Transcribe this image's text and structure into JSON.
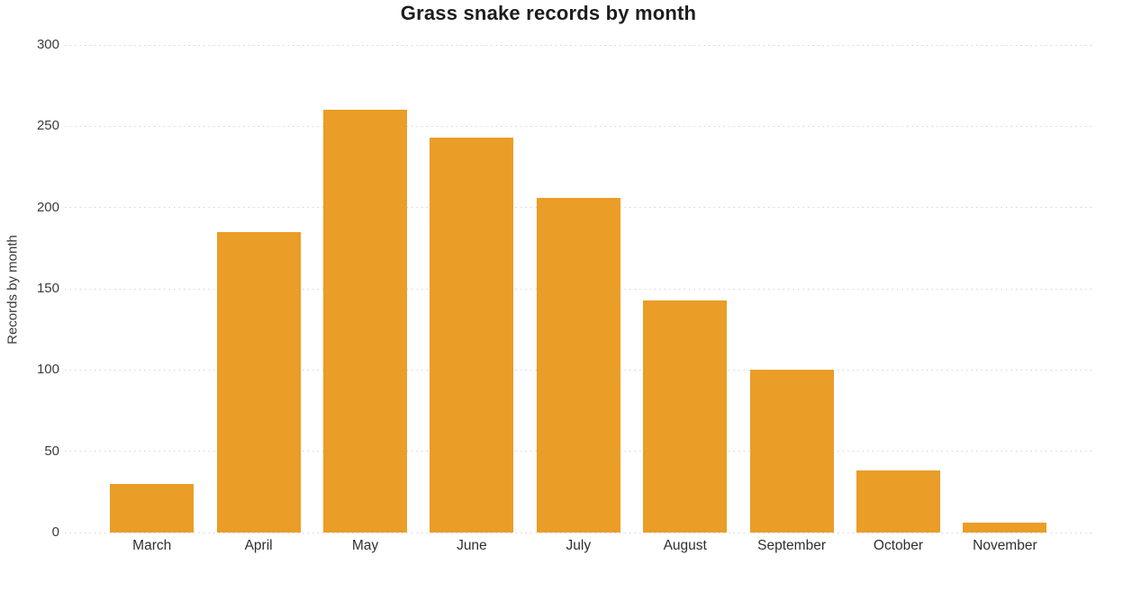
{
  "chart_data": {
    "type": "bar",
    "title": "Grass snake records by month",
    "xlabel": "",
    "ylabel": "Records by month",
    "categories": [
      "March",
      "April",
      "May",
      "June",
      "July",
      "August",
      "September",
      "October",
      "November"
    ],
    "values": [
      30,
      185,
      260,
      243,
      206,
      143,
      100,
      38,
      6
    ],
    "ylim": [
      0,
      300
    ],
    "yticks": [
      0,
      50,
      100,
      150,
      200,
      250,
      300
    ],
    "grid": "horizontal-dotted",
    "legend": "none",
    "bar_color": "#EA9D27",
    "gridline_color": "#D4D4D4",
    "title_color": "#1D1D1D",
    "axis_text_color": "#3B3B3B",
    "background_color": "#FFFFFF"
  }
}
